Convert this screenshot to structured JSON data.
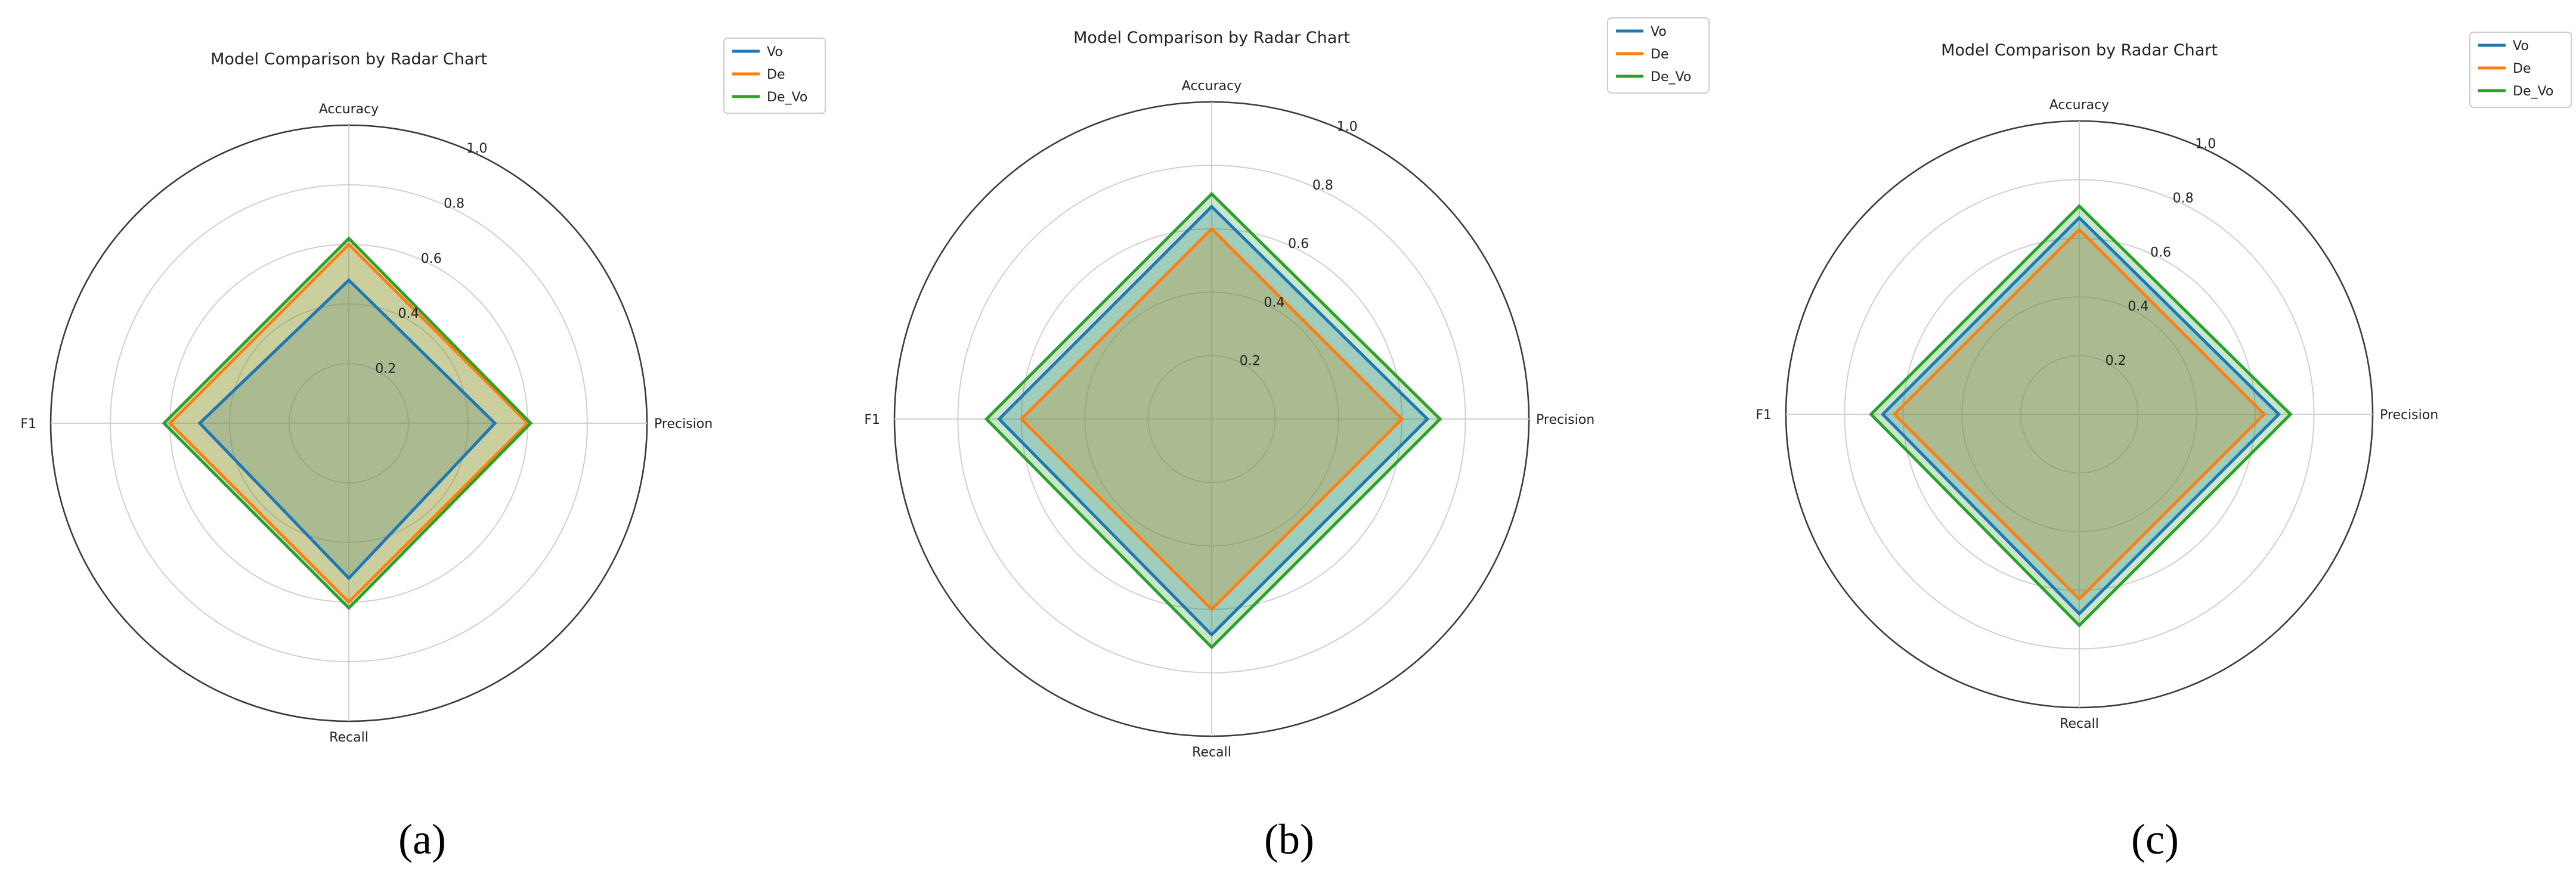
{
  "chart_data": [
    {
      "type": "radar",
      "panel_label": "(a)",
      "title": "Model Comparison by Radar Chart",
      "axes": [
        "Accuracy",
        "Precision",
        "Recall",
        "F1"
      ],
      "rlim": [
        0,
        1.0
      ],
      "r_ticks": [
        "0.2",
        "0.4",
        "0.6",
        "0.8",
        "1.0"
      ],
      "grid": true,
      "legend_position": "top-right",
      "series": [
        {
          "name": "Vo",
          "color": "#1f77b4",
          "values": [
            0.48,
            0.49,
            0.52,
            0.5
          ]
        },
        {
          "name": "De",
          "color": "#ff7f0e",
          "values": [
            0.6,
            0.6,
            0.6,
            0.6
          ]
        },
        {
          "name": "De_Vo",
          "color": "#2ca02c",
          "values": [
            0.62,
            0.61,
            0.62,
            0.62
          ]
        }
      ]
    },
    {
      "type": "radar",
      "panel_label": "(b)",
      "title": "Model Comparison by Radar Chart",
      "axes": [
        "Accuracy",
        "Precision",
        "Recall",
        "F1"
      ],
      "rlim": [
        0,
        1.0
      ],
      "r_ticks": [
        "0.2",
        "0.4",
        "0.6",
        "0.8",
        "1.0"
      ],
      "grid": true,
      "legend_position": "top-right",
      "series": [
        {
          "name": "Vo",
          "color": "#1f77b4",
          "values": [
            0.67,
            0.68,
            0.68,
            0.67
          ]
        },
        {
          "name": "De",
          "color": "#ff7f0e",
          "values": [
            0.6,
            0.6,
            0.6,
            0.6
          ]
        },
        {
          "name": "De_Vo",
          "color": "#2ca02c",
          "values": [
            0.71,
            0.72,
            0.72,
            0.71
          ]
        }
      ]
    },
    {
      "type": "radar",
      "panel_label": "(c)",
      "title": "Model Comparison by Radar Chart",
      "axes": [
        "Accuracy",
        "Precision",
        "Recall",
        "F1"
      ],
      "rlim": [
        0,
        1.0
      ],
      "r_ticks": [
        "0.2",
        "0.4",
        "0.6",
        "0.8",
        "1.0"
      ],
      "grid": true,
      "legend_position": "top-right",
      "series": [
        {
          "name": "Vo",
          "color": "#1f77b4",
          "values": [
            0.67,
            0.68,
            0.68,
            0.67
          ]
        },
        {
          "name": "De",
          "color": "#ff7f0e",
          "values": [
            0.63,
            0.63,
            0.63,
            0.63
          ]
        },
        {
          "name": "De_Vo",
          "color": "#2ca02c",
          "values": [
            0.71,
            0.72,
            0.72,
            0.71
          ]
        }
      ]
    }
  ]
}
